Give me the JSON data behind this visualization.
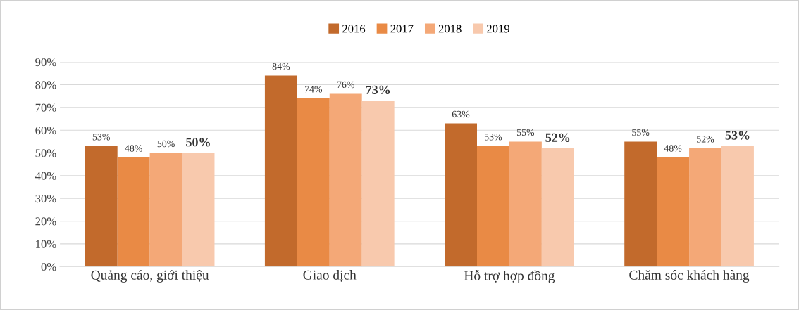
{
  "chart_data": {
    "type": "bar",
    "categories": [
      "Quảng cáo, giới thiệu",
      "Giao dịch",
      "Hỗ trợ hợp đồng",
      "Chăm sóc khách hàng"
    ],
    "series": [
      {
        "name": "2016",
        "color": "#c26a2c",
        "values": [
          53,
          84,
          63,
          55
        ],
        "value_labels": [
          "53%",
          "84%",
          "63%",
          "55%"
        ]
      },
      {
        "name": "2017",
        "color": "#e98a45",
        "values": [
          48,
          74,
          53,
          48
        ],
        "value_labels": [
          "48%",
          "74%",
          "53%",
          "48%"
        ]
      },
      {
        "name": "2018",
        "color": "#f4a877",
        "values": [
          50,
          76,
          55,
          52
        ],
        "value_labels": [
          "50%",
          "76%",
          "55%",
          "52%"
        ]
      },
      {
        "name": "2019",
        "color": "#f8c9ad",
        "values": [
          50,
          73,
          52,
          53
        ],
        "value_labels": [
          "50%",
          "73%",
          "52%",
          "53%"
        ]
      }
    ],
    "ylim": [
      0,
      90
    ],
    "yticks": [
      {
        "value": 0,
        "label": "0%"
      },
      {
        "value": 10,
        "label": "10%"
      },
      {
        "value": 20,
        "label": "20%"
      },
      {
        "value": 30,
        "label": "30%"
      },
      {
        "value": 40,
        "label": "40%"
      },
      {
        "value": 50,
        "label": "50%"
      },
      {
        "value": 60,
        "label": "60%"
      },
      {
        "value": 70,
        "label": "70%"
      },
      {
        "value": 80,
        "label": "80%"
      },
      {
        "value": 90,
        "label": "90%"
      }
    ],
    "grid": "y",
    "legend": "top"
  }
}
